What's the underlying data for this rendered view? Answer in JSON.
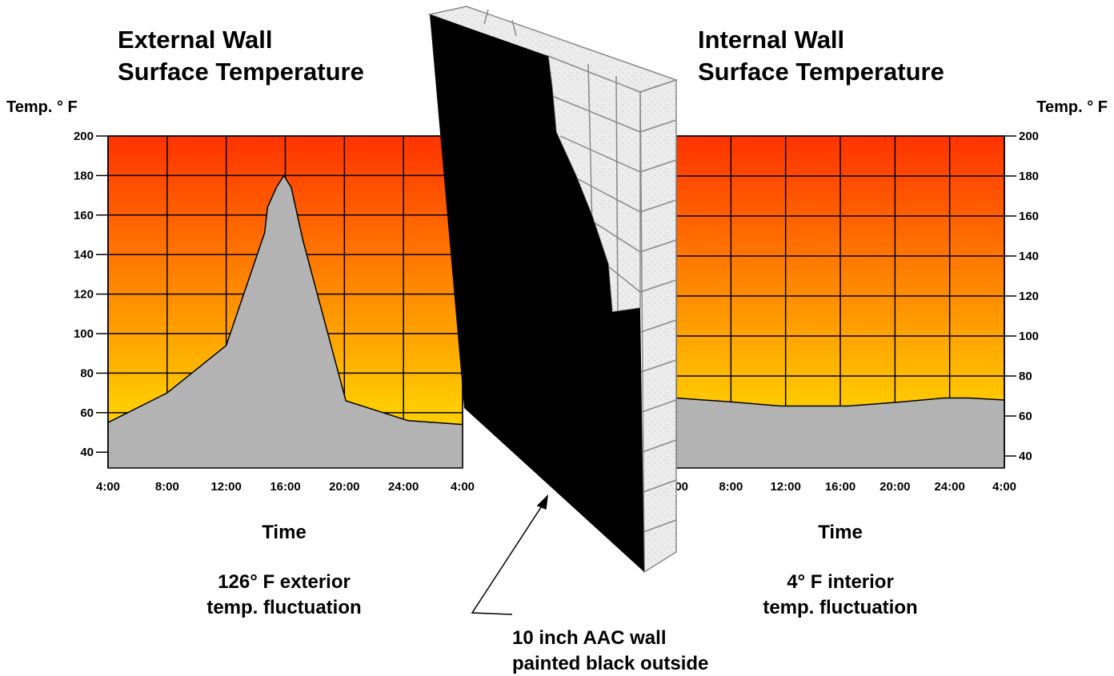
{
  "chart_data": [
    {
      "type": "area",
      "title": [
        "External Wall",
        "Surface Temperature"
      ],
      "y_label": "Temp. ° F",
      "x_label": "Time",
      "annotation": [
        "126° F exterior",
        "temp. fluctuation"
      ],
      "y_axis_side": "left",
      "x": [
        4,
        8,
        12,
        14.6,
        14.8,
        15.4,
        15.9,
        16.4,
        17.2,
        20.1,
        24.3,
        28
      ],
      "values": [
        55,
        70,
        94,
        151,
        164,
        174,
        180,
        174,
        147,
        66,
        56,
        54
      ],
      "color": "#b3b3b3",
      "background_gradient": [
        "#ff3300",
        "#ffcc00"
      ],
      "grid": true,
      "xlim": [
        4,
        28
      ],
      "xticks": [
        {
          "value": 4,
          "label": "4:00"
        },
        {
          "value": 8,
          "label": "8:00"
        },
        {
          "value": 12,
          "label": "12:00"
        },
        {
          "value": 16,
          "label": "16:00"
        },
        {
          "value": 20,
          "label": "20:00"
        },
        {
          "value": 24,
          "label": "24:00"
        },
        {
          "value": 28,
          "label": "4:00"
        }
      ],
      "ylim": [
        32,
        200
      ],
      "yticks": [
        40,
        60,
        80,
        100,
        120,
        140,
        160,
        180,
        200
      ]
    },
    {
      "type": "area",
      "title": [
        "Internal Wall",
        "Surface Temperature"
      ],
      "y_label": "Temp. ° F",
      "x_label": "Time",
      "annotation": [
        "4° F interior",
        "temp. fluctuation"
      ],
      "y_axis_side": "right",
      "x": [
        4,
        8.1,
        11.6,
        16.6,
        20.4,
        23.6,
        25.4,
        28
      ],
      "values": [
        69,
        67,
        65,
        65,
        67,
        69,
        69,
        68
      ],
      "color": "#b3b3b3",
      "background_gradient": [
        "#ff3300",
        "#ffcc00"
      ],
      "grid": true,
      "xlim": [
        4,
        28
      ],
      "xticks": [
        {
          "value": 4,
          "label": "4:00"
        },
        {
          "value": 8,
          "label": "8:00"
        },
        {
          "value": 12,
          "label": "12:00"
        },
        {
          "value": 16,
          "label": "16:00"
        },
        {
          "value": 20,
          "label": "20:00"
        },
        {
          "value": 24,
          "label": "24:00"
        },
        {
          "value": 28,
          "label": "4:00"
        }
      ],
      "ylim": [
        34,
        200
      ],
      "yticks": [
        40,
        60,
        80,
        100,
        120,
        140,
        160,
        180,
        200
      ]
    }
  ],
  "wall_label": [
    "10 inch AAC wall",
    "painted black outside"
  ]
}
